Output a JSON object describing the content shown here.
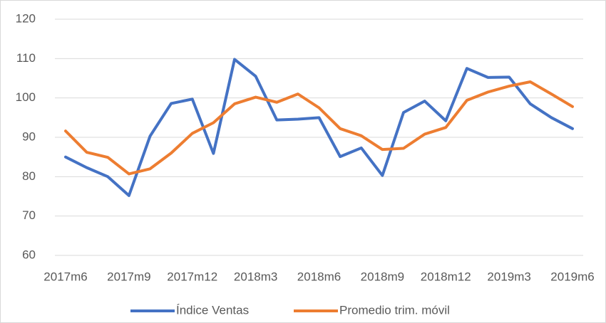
{
  "chart_data": {
    "type": "line",
    "categories": [
      "2017m6",
      null,
      null,
      "2017m9",
      null,
      null,
      "2017m12",
      null,
      null,
      "2018m3",
      null,
      null,
      "2018m6",
      null,
      null,
      "2018m9",
      null,
      null,
      "2018m12",
      null,
      null,
      "2019m3",
      null,
      null,
      "2019m6"
    ],
    "series": [
      {
        "name": "Índice Ventas",
        "color": "#4472c4",
        "values": [
          85,
          82.3,
          80,
          75.2,
          90.3,
          98.6,
          99.7,
          85.9,
          109.8,
          105.5,
          94.4,
          94.6,
          95,
          85.1,
          87.3,
          80.3,
          96.3,
          99.2,
          94.2,
          107.5,
          105.2,
          105.3,
          98.5,
          95,
          92.2
        ]
      },
      {
        "name": "Promedio trim. móvil",
        "color": "#ed7d31",
        "values": [
          91.6,
          86.2,
          84.9,
          80.7,
          82,
          86,
          91,
          93.7,
          98.5,
          100.2,
          98.9,
          101,
          97.5,
          92.2,
          90.4,
          86.9,
          87.2,
          90.8,
          92.5,
          99.4,
          101.5,
          103,
          104.1,
          101,
          97.8
        ]
      }
    ],
    "ylim": [
      60,
      120
    ],
    "yticks": [
      60,
      70,
      80,
      90,
      100,
      110,
      120
    ],
    "grid": true,
    "legend": "bottom"
  }
}
